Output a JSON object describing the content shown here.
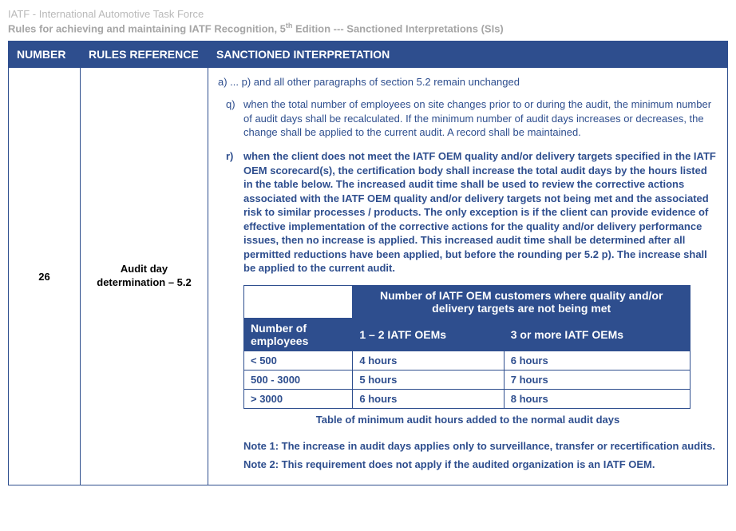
{
  "header": {
    "org": "IATF - International Automotive Task Force",
    "title_prefix": "Rules for achieving and maintaining IATF Recognition, 5",
    "title_sup": "th",
    "title_suffix": " Edition --- Sanctioned Interpretations (SIs)"
  },
  "columns": {
    "number": "NUMBER",
    "reference": "RULES REFERENCE",
    "interpretation": "SANCTIONED INTERPRETATION"
  },
  "row": {
    "number": "26",
    "reference": "Audit day determination – 5.2",
    "intro": "a) ... p)  and all other paragraphs of section 5.2 remain unchanged",
    "clause_q_letter": "q)",
    "clause_q_text": "when the total number of employees on site changes prior to or during the audit, the minimum number of audit days shall be recalculated.  If the minimum number of audit days increases or decreases, the change shall be applied to the current audit.  A record shall be maintained.",
    "clause_r_letter": "r)",
    "clause_r_text": "when the client does not meet the IATF OEM quality and/or delivery targets specified in the IATF OEM scorecard(s), the certification body shall increase the total audit days by the hours listed in the table below. The increased audit time shall be used to review the corrective actions associated with the IATF OEM quality and/or delivery targets not being met and the associated risk to similar processes / products. The only exception is if the client can provide evidence of effective implementation of the corrective actions for the quality and/or delivery performance issues, then no increase is applied.  This increased audit time shall be determined after all permitted reductions have been applied, but before the rounding per 5.2 p).  The increase shall be applied to the current audit.",
    "inner_table": {
      "span_header": "Number of IATF OEM customers where quality and/or delivery targets are not being met",
      "row_header": "Number of employees",
      "col1": "1 – 2 IATF OEMs",
      "col2": "3 or more IATF OEMs",
      "rows": [
        {
          "label": "< 500",
          "c1": "4 hours",
          "c2": "6 hours"
        },
        {
          "label": "500 - 3000",
          "c1": "5 hours",
          "c2": "7 hours"
        },
        {
          "label": "> 3000",
          "c1": "6 hours",
          "c2": "8 hours"
        }
      ]
    },
    "table_caption": "Table of minimum audit hours added to the normal audit days",
    "note1": "Note 1:  The increase in audit days applies only to surveillance, transfer or recertification audits.",
    "note2": "Note 2: This requirement does not apply if the audited organization is an IATF OEM."
  },
  "colors": {
    "header_bg": "#2e4e8e",
    "header_fg": "#ffffff",
    "border": "#2e4e8e",
    "body_text": "#2e4e8e",
    "faded": "#a6a6a6"
  }
}
